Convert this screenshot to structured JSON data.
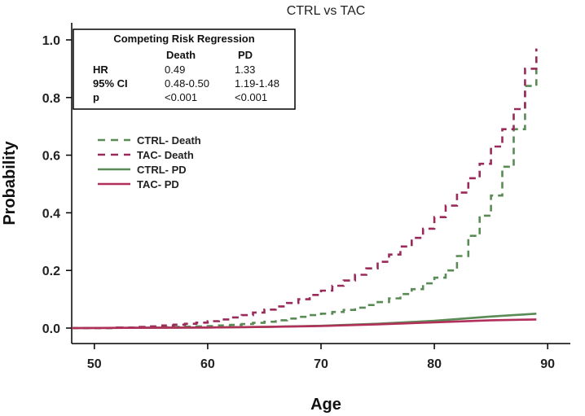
{
  "chart_data": {
    "type": "line",
    "title": "CTRL vs TAC",
    "xlabel": "Age",
    "ylabel": "Probability",
    "xlim": [
      48,
      92
    ],
    "ylim": [
      0,
      1.0
    ],
    "xticks": [
      50,
      60,
      70,
      80,
      90
    ],
    "yticks": [
      0.0,
      0.2,
      0.4,
      0.6,
      0.8,
      1.0
    ],
    "ytick_labels": [
      "0.0",
      "0.2",
      "0.4",
      "0.6",
      "0.8",
      "1.0"
    ],
    "grid": false,
    "legend_position": "upper-left",
    "series": [
      {
        "name": "CTRL- Death",
        "color": "#5a8a55",
        "style": "dashed-step",
        "x": [
          48,
          52,
          54,
          56,
          57,
          58,
          59,
          60,
          61,
          62,
          63,
          64,
          65,
          66,
          67,
          68,
          69,
          70,
          71,
          72,
          73,
          74,
          75,
          76,
          77,
          78,
          79,
          80,
          81,
          82,
          83,
          84,
          85,
          86,
          87,
          88,
          89
        ],
        "y": [
          0.0,
          0.001,
          0.002,
          0.003,
          0.004,
          0.005,
          0.006,
          0.007,
          0.009,
          0.011,
          0.014,
          0.018,
          0.022,
          0.027,
          0.033,
          0.039,
          0.045,
          0.05,
          0.056,
          0.063,
          0.071,
          0.08,
          0.09,
          0.103,
          0.118,
          0.135,
          0.155,
          0.175,
          0.2,
          0.25,
          0.32,
          0.39,
          0.46,
          0.56,
          0.69,
          0.84,
          0.93
        ]
      },
      {
        "name": "TAC- Death",
        "color": "#9a2a5a",
        "style": "dashed-step",
        "x": [
          48,
          52,
          54,
          55,
          56,
          57,
          58,
          59,
          60,
          61,
          62,
          63,
          64,
          65,
          66,
          67,
          68,
          69,
          70,
          71,
          72,
          73,
          74,
          75,
          76,
          77,
          78,
          79,
          80,
          81,
          82,
          83,
          84,
          85,
          86,
          87,
          88,
          89
        ],
        "y": [
          0.0,
          0.002,
          0.004,
          0.006,
          0.009,
          0.012,
          0.015,
          0.019,
          0.024,
          0.03,
          0.037,
          0.045,
          0.054,
          0.064,
          0.075,
          0.087,
          0.1,
          0.115,
          0.13,
          0.147,
          0.165,
          0.185,
          0.207,
          0.23,
          0.255,
          0.283,
          0.313,
          0.345,
          0.385,
          0.425,
          0.47,
          0.52,
          0.57,
          0.63,
          0.69,
          0.76,
          0.9,
          0.97
        ]
      },
      {
        "name": "CTRL- PD",
        "color": "#5a8a55",
        "style": "solid",
        "x": [
          48,
          55,
          60,
          65,
          70,
          75,
          80,
          85,
          89
        ],
        "y": [
          0.0,
          0.001,
          0.002,
          0.004,
          0.008,
          0.015,
          0.025,
          0.04,
          0.05
        ]
      },
      {
        "name": "TAC- PD",
        "color": "#b0305a",
        "style": "solid",
        "x": [
          48,
          55,
          60,
          65,
          70,
          75,
          80,
          85,
          89
        ],
        "y": [
          0.0,
          0.001,
          0.002,
          0.004,
          0.007,
          0.013,
          0.02,
          0.027,
          0.03
        ]
      }
    ]
  },
  "crr_table": {
    "title": "Competing Risk Regression",
    "columns": [
      "",
      "Death",
      "PD"
    ],
    "rows": [
      {
        "label": "HR",
        "death": "0.49",
        "pd": "1.33"
      },
      {
        "label": "95% CI",
        "death": "0.48-0.50",
        "pd": "1.19-1.48"
      },
      {
        "label": "p",
        "death": "<0.001",
        "pd": "<0.001"
      }
    ]
  }
}
